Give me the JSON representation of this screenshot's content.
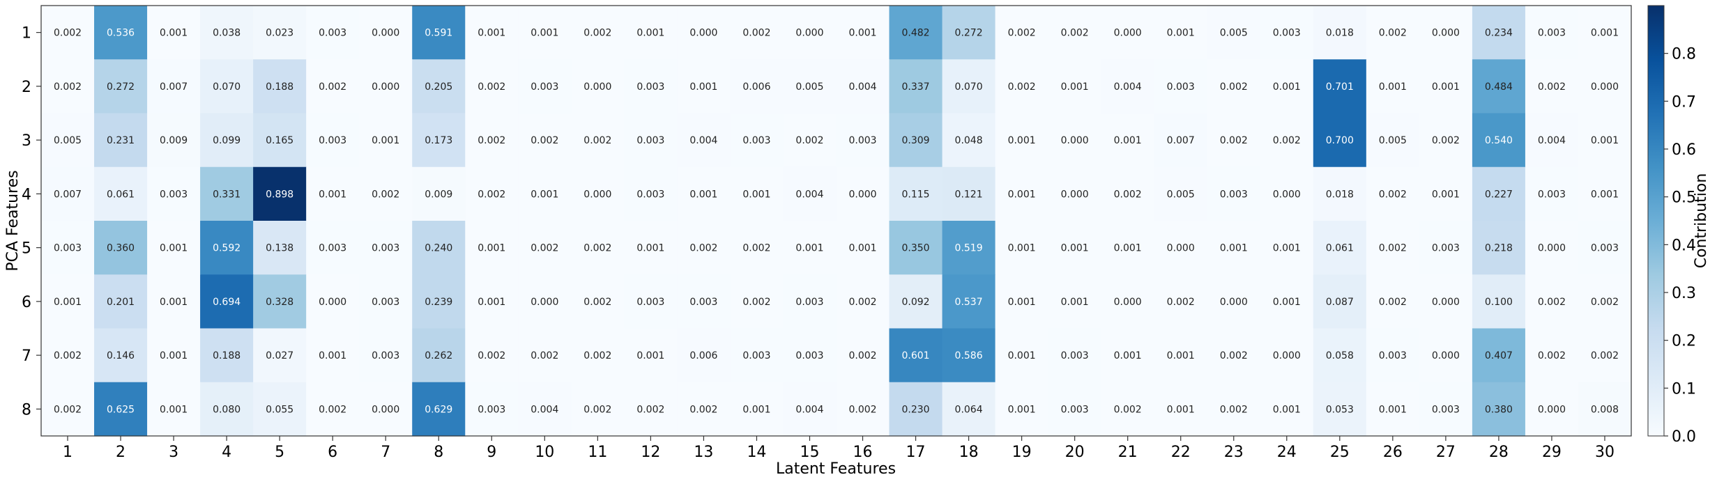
{
  "chart_data": {
    "type": "heatmap",
    "title": "",
    "xlabel": "Latent Features",
    "ylabel": "PCA Features",
    "colorbar_label": "Contribution",
    "colormap": "Blues",
    "vmin": 0.0,
    "vmax": 0.9,
    "colorbar_ticks": [
      "0.0",
      "0.1",
      "0.2",
      "0.3",
      "0.4",
      "0.5",
      "0.6",
      "0.7",
      "0.8"
    ],
    "colorbar_tick_values": [
      0.0,
      0.1,
      0.2,
      0.3,
      0.4,
      0.5,
      0.6,
      0.7,
      0.8
    ],
    "x_categories": [
      "1",
      "2",
      "3",
      "4",
      "5",
      "6",
      "7",
      "8",
      "9",
      "10",
      "11",
      "12",
      "13",
      "14",
      "15",
      "16",
      "17",
      "18",
      "19",
      "20",
      "21",
      "22",
      "23",
      "24",
      "25",
      "26",
      "27",
      "28",
      "29",
      "30"
    ],
    "y_categories": [
      "1",
      "2",
      "3",
      "4",
      "5",
      "6",
      "7",
      "8"
    ],
    "values": [
      [
        "0.002",
        "0.536",
        "0.001",
        "0.038",
        "0.023",
        "0.003",
        "0.000",
        "0.591",
        "0.001",
        "0.001",
        "0.002",
        "0.001",
        "0.000",
        "0.002",
        "0.000",
        "0.001",
        "0.482",
        "0.272",
        "0.002",
        "0.002",
        "0.000",
        "0.001",
        "0.005",
        "0.003",
        "0.018",
        "0.002",
        "0.000",
        "0.234",
        "0.003",
        "0.001"
      ],
      [
        "0.002",
        "0.272",
        "0.007",
        "0.070",
        "0.188",
        "0.002",
        "0.000",
        "0.205",
        "0.002",
        "0.003",
        "0.000",
        "0.003",
        "0.001",
        "0.006",
        "0.005",
        "0.004",
        "0.337",
        "0.070",
        "0.002",
        "0.001",
        "0.004",
        "0.003",
        "0.002",
        "0.001",
        "0.701",
        "0.001",
        "0.001",
        "0.484",
        "0.002",
        "0.000"
      ],
      [
        "0.005",
        "0.231",
        "0.009",
        "0.099",
        "0.165",
        "0.003",
        "0.001",
        "0.173",
        "0.002",
        "0.002",
        "0.002",
        "0.003",
        "0.004",
        "0.003",
        "0.002",
        "0.003",
        "0.309",
        "0.048",
        "0.001",
        "0.000",
        "0.001",
        "0.007",
        "0.002",
        "0.002",
        "0.700",
        "0.005",
        "0.002",
        "0.540",
        "0.004",
        "0.001"
      ],
      [
        "0.007",
        "0.061",
        "0.003",
        "0.331",
        "0.898",
        "0.001",
        "0.002",
        "0.009",
        "0.002",
        "0.001",
        "0.000",
        "0.003",
        "0.001",
        "0.001",
        "0.004",
        "0.000",
        "0.115",
        "0.121",
        "0.001",
        "0.000",
        "0.002",
        "0.005",
        "0.003",
        "0.000",
        "0.018",
        "0.002",
        "0.001",
        "0.227",
        "0.003",
        "0.001"
      ],
      [
        "0.003",
        "0.360",
        "0.001",
        "0.592",
        "0.138",
        "0.003",
        "0.003",
        "0.240",
        "0.001",
        "0.002",
        "0.002",
        "0.001",
        "0.002",
        "0.002",
        "0.001",
        "0.001",
        "0.350",
        "0.519",
        "0.001",
        "0.001",
        "0.001",
        "0.000",
        "0.001",
        "0.001",
        "0.061",
        "0.002",
        "0.003",
        "0.218",
        "0.000",
        "0.003"
      ],
      [
        "0.001",
        "0.201",
        "0.001",
        "0.694",
        "0.328",
        "0.000",
        "0.003",
        "0.239",
        "0.001",
        "0.000",
        "0.002",
        "0.003",
        "0.003",
        "0.002",
        "0.003",
        "0.002",
        "0.092",
        "0.537",
        "0.001",
        "0.001",
        "0.000",
        "0.002",
        "0.000",
        "0.001",
        "0.087",
        "0.002",
        "0.000",
        "0.100",
        "0.002",
        "0.002"
      ],
      [
        "0.002",
        "0.146",
        "0.001",
        "0.188",
        "0.027",
        "0.001",
        "0.003",
        "0.262",
        "0.002",
        "0.002",
        "0.002",
        "0.001",
        "0.006",
        "0.003",
        "0.003",
        "0.002",
        "0.601",
        "0.586",
        "0.001",
        "0.003",
        "0.001",
        "0.001",
        "0.002",
        "0.000",
        "0.058",
        "0.003",
        "0.000",
        "0.407",
        "0.002",
        "0.002"
      ],
      [
        "0.002",
        "0.625",
        "0.001",
        "0.080",
        "0.055",
        "0.002",
        "0.000",
        "0.629",
        "0.003",
        "0.004",
        "0.002",
        "0.002",
        "0.002",
        "0.001",
        "0.004",
        "0.002",
        "0.230",
        "0.064",
        "0.001",
        "0.003",
        "0.002",
        "0.001",
        "0.002",
        "0.001",
        "0.053",
        "0.001",
        "0.003",
        "0.380",
        "0.000",
        "0.008"
      ]
    ]
  }
}
